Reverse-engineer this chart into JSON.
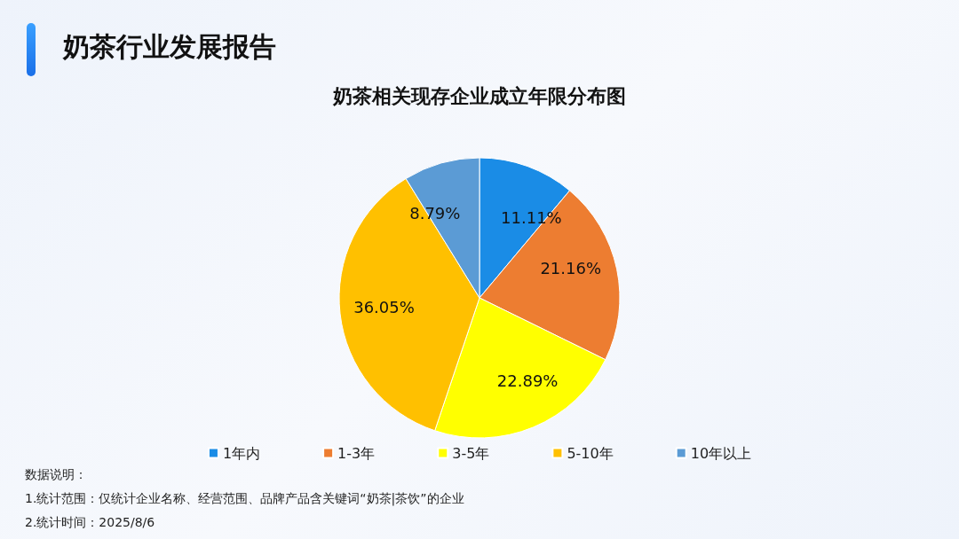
{
  "chart_data": {
    "type": "pie",
    "title": "奶茶行业发展报告",
    "subtitle": "奶茶相关现存企业成立年限分布图",
    "categories": [
      "1年内",
      "1-3年",
      "3-5年",
      "5-10年",
      "10年以上"
    ],
    "values": [
      11.11,
      21.16,
      22.89,
      36.05,
      8.79
    ],
    "colors": [
      "#1a8ce6",
      "#ed7d31",
      "#ffff00",
      "#ffc000",
      "#5b9bd5"
    ],
    "value_labels": [
      "11.11%",
      "21.16%",
      "22.89%",
      "36.05%",
      "8.79%"
    ],
    "legend": "bottom",
    "annotations": [
      "数据说明：",
      "1.统计范围：仅统计企业名称、经营范围、品牌产品含关键词“奶茶|茶饮”的企业",
      "2.统计时间：2025/8/6"
    ]
  }
}
